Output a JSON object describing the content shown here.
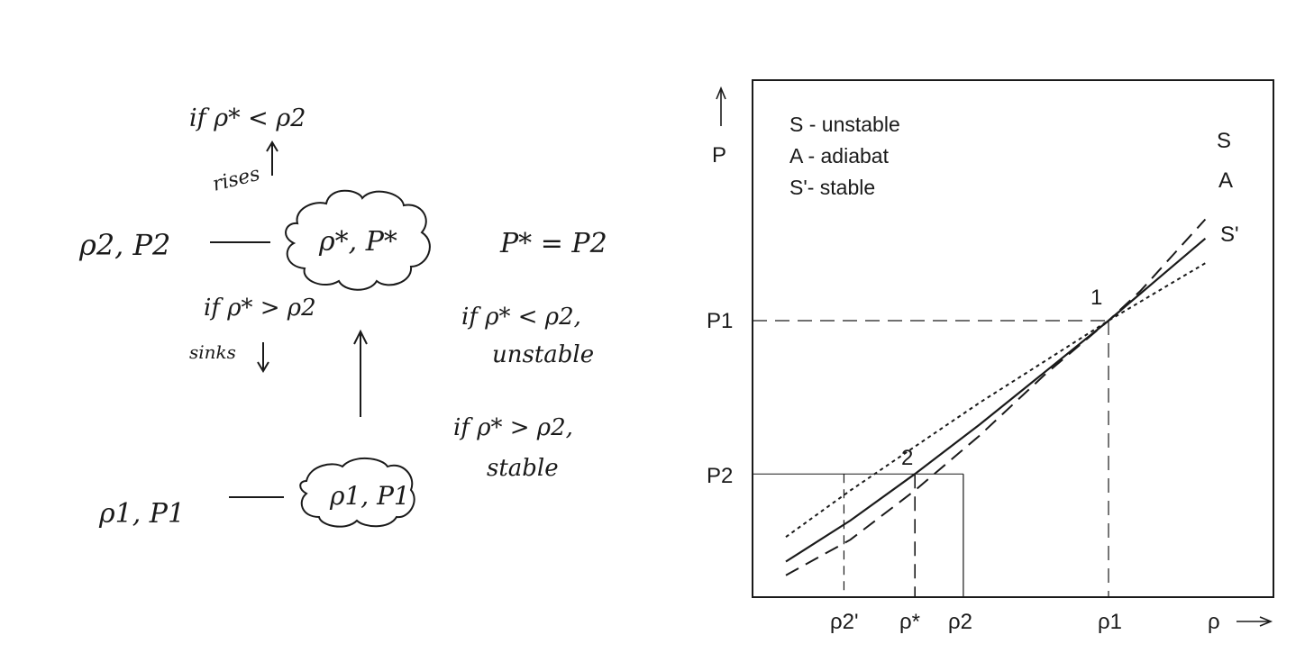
{
  "left_sketch": {
    "top_condition": "if ρ* < ρ2",
    "rises": "rises",
    "upper_level": "ρ2, P2",
    "blob_upper": "ρ*, P*",
    "pressure_equal": "P* = P2",
    "sink_condition": "if ρ* > ρ2",
    "sinks": "sinks",
    "unstable_condition": "if ρ* < ρ2,",
    "unstable_word": "unstable",
    "stable_condition": "if ρ* > ρ2,",
    "stable_word": "stable",
    "lower_level": "ρ1, P1",
    "blob_lower": "ρ1, P1"
  },
  "legend": {
    "line1": "S - unstable",
    "line2": "A - adiabat",
    "line3": "S'- stable"
  },
  "curve_labels": {
    "s": "S",
    "a": "A",
    "sp": "S'"
  },
  "points": {
    "p1_label": "1",
    "p2_label": "2"
  },
  "axes": {
    "y_arrow_label": "P",
    "x_arrow_label": "ρ",
    "y_ticks": {
      "p1": "P1",
      "p2": "P2"
    },
    "x_ticks": {
      "r2p": "ρ2'",
      "rstar": "ρ*",
      "r2": "ρ2",
      "r1": "ρ1"
    }
  },
  "chart_data": {
    "type": "line",
    "xlabel": "ρ",
    "ylabel": "P",
    "series": [
      {
        "name": "S",
        "style": "dashed",
        "x": [
          0.0,
          0.2,
          0.4,
          0.6,
          0.8,
          1.0,
          1.1,
          1.2,
          1.3
        ],
        "y": [
          0.07,
          0.2,
          0.38,
          0.58,
          0.8,
          1.0,
          1.11,
          1.24,
          1.37
        ]
      },
      {
        "name": "A",
        "style": "solid",
        "x": [
          0.0,
          0.2,
          0.4,
          0.6,
          0.8,
          1.0,
          1.1,
          1.2,
          1.3
        ],
        "y": [
          0.12,
          0.27,
          0.44,
          0.62,
          0.81,
          1.0,
          1.1,
          1.2,
          1.3
        ]
      },
      {
        "name": "S'",
        "style": "dotted",
        "x": [
          0.0,
          0.2,
          0.4,
          0.6,
          0.8,
          1.0,
          1.1,
          1.2,
          1.3
        ],
        "y": [
          0.21,
          0.38,
          0.54,
          0.7,
          0.85,
          1.0,
          1.07,
          1.14,
          1.21
        ]
      }
    ],
    "colors": {
      "ink": "#1a1a1a"
    }
  }
}
